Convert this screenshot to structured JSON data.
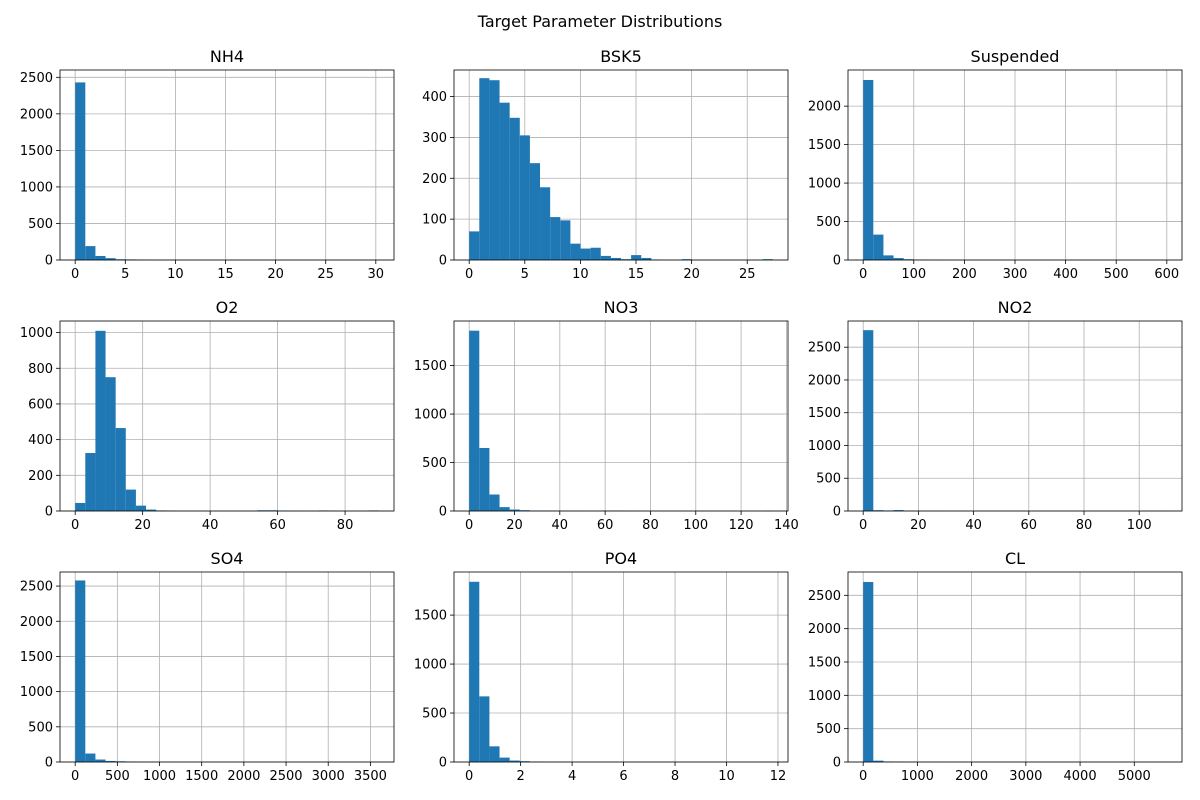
{
  "figure": {
    "title": "Target Parameter Distributions"
  },
  "colors": {
    "bar": "#1f77b4",
    "grid": "#b0b0b0",
    "axis": "#000000"
  },
  "chart_data": [
    {
      "type": "bar",
      "title": "NH4",
      "bins": [
        0,
        30.3
      ],
      "ylim": [
        0,
        2600
      ],
      "counts": [
        2430,
        190,
        55,
        25,
        10,
        8,
        5,
        3,
        2,
        2,
        1,
        1,
        1,
        0,
        0,
        0,
        0,
        0,
        0,
        0,
        0,
        0,
        0,
        0,
        0,
        0,
        0,
        0,
        0,
        1
      ],
      "xticks": [
        0,
        5,
        10,
        15,
        20,
        25,
        30
      ],
      "yticks": [
        0,
        500,
        1000,
        1500,
        2000,
        2500
      ],
      "grid": true
    },
    {
      "type": "bar",
      "title": "BSK5",
      "bins": [
        0,
        27.3
      ],
      "ylim": [
        0,
        465
      ],
      "counts": [
        70,
        445,
        440,
        385,
        348,
        305,
        237,
        178,
        105,
        97,
        40,
        28,
        30,
        10,
        5,
        2,
        12,
        5,
        1,
        0,
        0,
        2,
        0,
        0,
        0,
        0,
        0,
        0,
        0,
        2
      ],
      "xticks": [
        0,
        5,
        10,
        15,
        20,
        25
      ],
      "yticks": [
        0,
        100,
        200,
        300,
        400
      ],
      "grid": true
    },
    {
      "type": "bar",
      "title": "Suspended",
      "bins": [
        0,
        600
      ],
      "ylim": [
        0,
        2470
      ],
      "counts": [
        2340,
        330,
        60,
        25,
        10,
        5,
        3,
        2,
        1,
        1,
        0,
        0,
        0,
        0,
        0,
        0,
        0,
        0,
        0,
        0,
        0,
        0,
        0,
        0,
        0,
        0,
        0,
        0,
        0,
        1
      ],
      "xticks": [
        0,
        100,
        200,
        300,
        400,
        500,
        600
      ],
      "yticks": [
        0,
        500,
        1000,
        1500,
        2000
      ],
      "grid": true
    },
    {
      "type": "bar",
      "title": "O2",
      "bins": [
        0,
        90
      ],
      "ylim": [
        0,
        1065
      ],
      "counts": [
        45,
        325,
        1010,
        750,
        465,
        120,
        30,
        8,
        3,
        2,
        0,
        0,
        0,
        0,
        0,
        0,
        0,
        0,
        4,
        4,
        2,
        1,
        0,
        0,
        3,
        2,
        0,
        0,
        0,
        3
      ],
      "xticks": [
        0,
        20,
        40,
        60,
        80
      ],
      "yticks": [
        0,
        200,
        400,
        600,
        800,
        1000
      ],
      "grid": true
    },
    {
      "type": "bar",
      "title": "NO3",
      "bins": [
        0,
        134
      ],
      "ylim": [
        0,
        1960
      ],
      "counts": [
        1860,
        650,
        170,
        40,
        15,
        8,
        5,
        3,
        2,
        3,
        1,
        0,
        0,
        3,
        4,
        2,
        1,
        0,
        0,
        0,
        0,
        0,
        0,
        0,
        0,
        0,
        0,
        0,
        0,
        3
      ],
      "xticks": [
        0,
        20,
        40,
        60,
        80,
        100,
        120,
        140
      ],
      "yticks": [
        0,
        500,
        1000,
        1500
      ],
      "grid": true
    },
    {
      "type": "bar",
      "title": "NO2",
      "bins": [
        0,
        110
      ],
      "ylim": [
        0,
        2900
      ],
      "counts": [
        2760,
        12,
        8,
        14,
        3,
        2,
        1,
        1,
        0,
        0,
        0,
        0,
        0,
        0,
        0,
        0,
        0,
        0,
        0,
        0,
        0,
        0,
        0,
        0,
        0,
        0,
        0,
        0,
        0,
        1
      ],
      "xticks": [
        0,
        20,
        40,
        60,
        80,
        100
      ],
      "yticks": [
        0,
        500,
        1000,
        1500,
        2000,
        2500
      ],
      "grid": true
    },
    {
      "type": "bar",
      "title": "SO4",
      "bins": [
        0,
        3600
      ],
      "ylim": [
        0,
        2700
      ],
      "counts": [
        2580,
        120,
        35,
        15,
        10,
        5,
        3,
        2,
        1,
        1,
        0,
        0,
        0,
        0,
        0,
        0,
        0,
        0,
        0,
        0,
        0,
        0,
        0,
        0,
        0,
        0,
        0,
        0,
        0,
        1
      ],
      "xticks": [
        0,
        500,
        1000,
        1500,
        2000,
        2500,
        3000,
        3500
      ],
      "yticks": [
        0,
        500,
        1000,
        1500,
        2000,
        2500
      ],
      "grid": true
    },
    {
      "type": "bar",
      "title": "PO4",
      "bins": [
        0,
        11.8
      ],
      "ylim": [
        0,
        1940
      ],
      "counts": [
        1840,
        670,
        160,
        45,
        15,
        8,
        3,
        2,
        1,
        1,
        0,
        0,
        0,
        0,
        0,
        0,
        0,
        0,
        0,
        0,
        0,
        0,
        0,
        0,
        0,
        0,
        0,
        0,
        0,
        1
      ],
      "xticks": [
        0,
        2,
        4,
        6,
        8,
        10,
        12
      ],
      "yticks": [
        0,
        500,
        1000,
        1500
      ],
      "grid": true
    },
    {
      "type": "bar",
      "title": "CL",
      "bins": [
        0,
        5600
      ],
      "ylim": [
        0,
        2850
      ],
      "counts": [
        2700,
        20,
        8,
        4,
        2,
        1,
        1,
        1,
        0,
        0,
        0,
        0,
        0,
        0,
        0,
        0,
        0,
        0,
        0,
        0,
        0,
        0,
        0,
        0,
        0,
        0,
        0,
        0,
        0,
        1
      ],
      "xticks": [
        0,
        1000,
        2000,
        3000,
        4000,
        5000
      ],
      "yticks": [
        0,
        500,
        1000,
        1500,
        2000,
        2500
      ],
      "grid": true
    }
  ]
}
